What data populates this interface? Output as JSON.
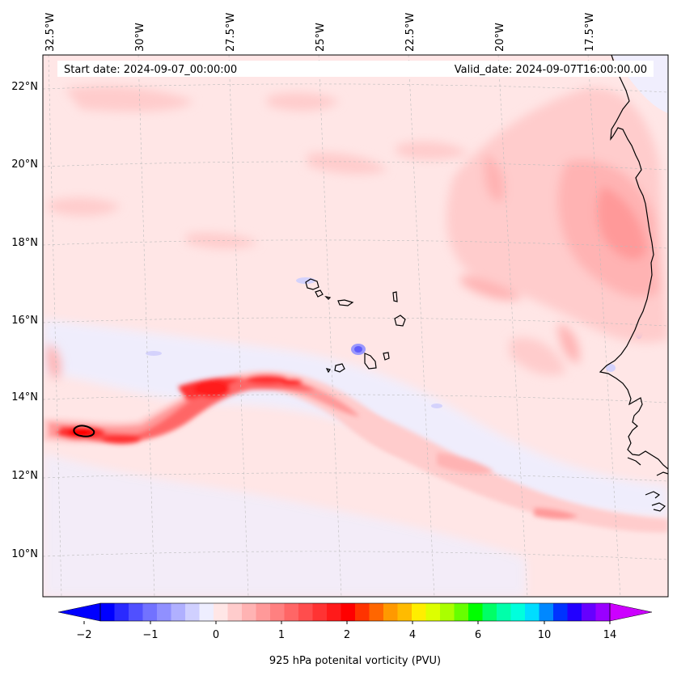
{
  "map": {
    "header_left": "Start date: 2024-09-07_00:00:00",
    "header_right": "Valid_date: 2024-09-07T16:00:00.00",
    "lon_labels": [
      "32.5°W",
      "30°W",
      "27.5°W",
      "25°W",
      "22.5°W",
      "20°W",
      "17.5°W"
    ],
    "lat_labels": [
      "22°N",
      "20°N",
      "18°N",
      "16°N",
      "14°N",
      "12°N",
      "10°N"
    ],
    "background_color": "#ffe6e6",
    "coastline_color": "#000000",
    "contour_label": "PVU contour",
    "regions": [
      "West African coast",
      "Cape Verde Islands"
    ]
  },
  "colorbar": {
    "label": "925 hPa potenital vorticity (PVU)",
    "ticks": [
      "−2",
      "−1",
      "0",
      "1",
      "2",
      "4",
      "6",
      "10",
      "14"
    ],
    "colors": [
      "#0000ff",
      "#2a2aff",
      "#5050ff",
      "#7272ff",
      "#9090ff",
      "#b0b0ff",
      "#d0d0ff",
      "#eeeeff",
      "#ffe6e6",
      "#ffcccc",
      "#ffb3b3",
      "#ff9999",
      "#ff8080",
      "#ff6666",
      "#ff4d4d",
      "#ff3333",
      "#ff1a1a",
      "#ff0000",
      "#ff3300",
      "#ff6600",
      "#ff9900",
      "#ffbb00",
      "#ffee00",
      "#ddff00",
      "#aaff00",
      "#66ff00",
      "#00ff00",
      "#00ff66",
      "#00ffaa",
      "#00ffdd",
      "#00ddff",
      "#0088ff",
      "#0033ff",
      "#2200ff",
      "#6600ff",
      "#9900ff"
    ],
    "under_color": "#0000ff",
    "over_color": "#cc00ff"
  }
}
